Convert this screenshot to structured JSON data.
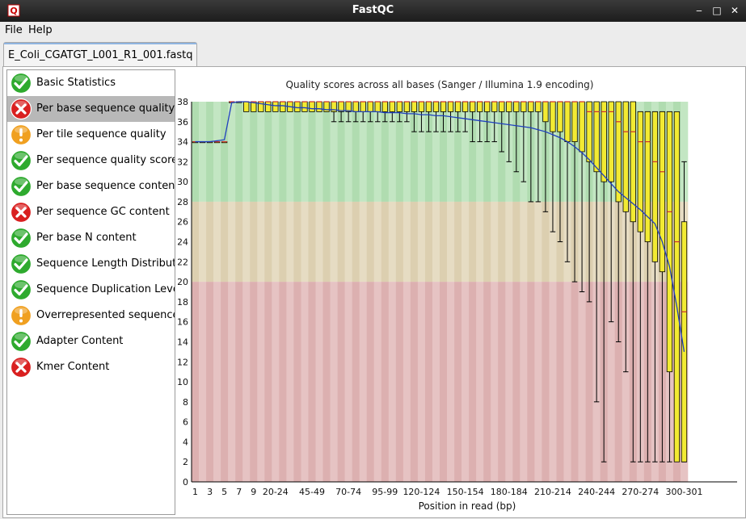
{
  "window": {
    "title": "FastQC"
  },
  "menubar": {
    "file_label": "File",
    "help_label": "Help"
  },
  "tab": {
    "label": "E_Coli_CGATGT_L001_R1_001.fastq"
  },
  "sidebar": {
    "items": [
      {
        "label": "Basic Statistics",
        "status": "pass"
      },
      {
        "label": "Per base sequence quality",
        "status": "fail",
        "selected": true
      },
      {
        "label": "Per tile sequence quality",
        "status": "warn"
      },
      {
        "label": "Per sequence quality scores",
        "status": "pass"
      },
      {
        "label": "Per base sequence content",
        "status": "pass"
      },
      {
        "label": "Per sequence GC content",
        "status": "fail"
      },
      {
        "label": "Per base N content",
        "status": "pass"
      },
      {
        "label": "Sequence Length Distribution",
        "status": "pass"
      },
      {
        "label": "Sequence Duplication Levels",
        "status": "pass"
      },
      {
        "label": "Overrepresented sequences",
        "status": "warn"
      },
      {
        "label": "Adapter Content",
        "status": "pass"
      },
      {
        "label": "Kmer Content",
        "status": "fail"
      }
    ]
  },
  "colors": {
    "pass": "#2eaa2e",
    "warn": "#f0a020",
    "fail": "#d92020",
    "band_good": "#c3e6c3",
    "band_warn": "#e6dcc3",
    "band_bad": "#e6c3c3",
    "box_fill": "#f2ea33",
    "mean_line": "#1f3fbf",
    "median_line": "#cc3030"
  },
  "chart_data": {
    "type": "box",
    "title": "Quality scores across all bases (Sanger / Illumina 1.9 encoding)",
    "xlabel": "Position in read (bp)",
    "ylabel": "",
    "ylim": [
      0,
      38
    ],
    "y_ticks": [
      0,
      2,
      4,
      6,
      8,
      10,
      12,
      14,
      16,
      18,
      20,
      22,
      24,
      26,
      28,
      30,
      32,
      34,
      36,
      38
    ],
    "bands": [
      {
        "from": 28,
        "to": 38,
        "name": "good"
      },
      {
        "from": 20,
        "to": 28,
        "name": "warn"
      },
      {
        "from": 0,
        "to": 20,
        "name": "bad"
      }
    ],
    "categories": [
      "1",
      "2",
      "3",
      "4",
      "5",
      "6",
      "7",
      "8",
      "9",
      "10-14",
      "15-19",
      "20-24",
      "25-29",
      "30-34",
      "35-39",
      "40-44",
      "45-49",
      "50-54",
      "55-59",
      "60-64",
      "65-69",
      "70-74",
      "75-79",
      "80-84",
      "85-89",
      "90-94",
      "95-99",
      "100-104",
      "105-109",
      "110-114",
      "115-119",
      "120-124",
      "125-129",
      "130-134",
      "135-139",
      "140-144",
      "145-149",
      "150-154",
      "155-159",
      "160-164",
      "165-169",
      "170-174",
      "175-179",
      "180-184",
      "185-189",
      "190-194",
      "195-199",
      "200-204",
      "205-209",
      "210-214",
      "215-219",
      "220-224",
      "225-229",
      "230-234",
      "235-239",
      "240-244",
      "245-249",
      "250-254",
      "255-259",
      "260-264",
      "265-269",
      "270-274",
      "275-279",
      "280-284",
      "285-289",
      "290-294",
      "295-299",
      "300-301"
    ],
    "x_tick_labels": [
      "1",
      "3",
      "5",
      "7",
      "9",
      "20-24",
      "45-49",
      "70-74",
      "95-99",
      "120-124",
      "150-154",
      "180-184",
      "210-214",
      "240-244",
      "270-274",
      "300-301"
    ],
    "series": [
      {
        "name": "mean",
        "values": [
          34.0,
          34.0,
          34.0,
          34.1,
          34.2,
          37.9,
          38.0,
          38.0,
          37.9,
          37.8,
          37.7,
          37.6,
          37.6,
          37.5,
          37.4,
          37.4,
          37.3,
          37.3,
          37.2,
          37.2,
          37.1,
          37.1,
          37.0,
          37.0,
          37.0,
          37.0,
          36.9,
          36.9,
          36.9,
          36.8,
          36.8,
          36.7,
          36.7,
          36.6,
          36.6,
          36.5,
          36.4,
          36.3,
          36.2,
          36.1,
          36.0,
          35.9,
          35.8,
          35.7,
          35.6,
          35.5,
          35.4,
          35.2,
          35.0,
          34.7,
          34.4,
          34.0,
          33.5,
          32.9,
          32.2,
          31.4,
          30.6,
          29.8,
          29.0,
          28.4,
          27.8,
          27.2,
          26.5,
          25.8,
          24.0,
          21.5,
          17.5,
          13.0
        ]
      },
      {
        "name": "median",
        "values": [
          34,
          34,
          34,
          34,
          34,
          38,
          38,
          38,
          38,
          38,
          38,
          38,
          38,
          38,
          38,
          38,
          38,
          38,
          38,
          38,
          38,
          38,
          38,
          38,
          38,
          38,
          38,
          38,
          38,
          38,
          38,
          38,
          38,
          38,
          38,
          38,
          38,
          38,
          38,
          38,
          38,
          38,
          38,
          38,
          38,
          38,
          38,
          38,
          38,
          38,
          38,
          38,
          38,
          38,
          37,
          37,
          37,
          37,
          36,
          35,
          35,
          34,
          34,
          32,
          31,
          27,
          24,
          17
        ]
      },
      {
        "name": "q1",
        "values": [
          34,
          34,
          34,
          34,
          34,
          38,
          38,
          37,
          37,
          37,
          37,
          37,
          37,
          37,
          37,
          37,
          37,
          37,
          37,
          37,
          37,
          37,
          37,
          37,
          37,
          37,
          37,
          37,
          37,
          37,
          37,
          37,
          37,
          37,
          37,
          37,
          37,
          37,
          37,
          37,
          37,
          37,
          37,
          37,
          37,
          37,
          37,
          37,
          36,
          35,
          35,
          34,
          34,
          33,
          32,
          31,
          30,
          30,
          28,
          27,
          26,
          25,
          24,
          22,
          21,
          11,
          2,
          2
        ]
      },
      {
        "name": "q3",
        "values": [
          34,
          34,
          34,
          34,
          34,
          38,
          38,
          38,
          38,
          38,
          38,
          38,
          38,
          38,
          38,
          38,
          38,
          38,
          38,
          38,
          38,
          38,
          38,
          38,
          38,
          38,
          38,
          38,
          38,
          38,
          38,
          38,
          38,
          38,
          38,
          38,
          38,
          38,
          38,
          38,
          38,
          38,
          38,
          38,
          38,
          38,
          38,
          38,
          38,
          38,
          38,
          38,
          38,
          38,
          38,
          38,
          38,
          38,
          38,
          38,
          38,
          37,
          37,
          37,
          37,
          37,
          37,
          26
        ]
      },
      {
        "name": "p10",
        "values": [
          34,
          34,
          34,
          34,
          34,
          38,
          38,
          37,
          37,
          37,
          37,
          37,
          37,
          37,
          37,
          37,
          37,
          37,
          37,
          36,
          36,
          36,
          36,
          36,
          36,
          36,
          36,
          36,
          36,
          36,
          35,
          35,
          35,
          35,
          35,
          35,
          35,
          35,
          34,
          34,
          34,
          34,
          33,
          32,
          31,
          30,
          28,
          28,
          27,
          25,
          24,
          22,
          20,
          19,
          18,
          8,
          2,
          16,
          14,
          11,
          2,
          2,
          2,
          2,
          2,
          2,
          2,
          2
        ]
      },
      {
        "name": "p90",
        "values": [
          34,
          34,
          34,
          34,
          34,
          38,
          38,
          38,
          38,
          38,
          38,
          38,
          38,
          38,
          38,
          38,
          38,
          38,
          38,
          38,
          38,
          38,
          38,
          38,
          38,
          38,
          38,
          38,
          38,
          38,
          38,
          38,
          38,
          38,
          38,
          38,
          38,
          38,
          38,
          38,
          38,
          38,
          38,
          38,
          38,
          38,
          38,
          38,
          38,
          38,
          38,
          38,
          38,
          38,
          37,
          37,
          37,
          37,
          37,
          37,
          37,
          37,
          37,
          37,
          37,
          37,
          37,
          32
        ]
      }
    ],
    "grid": false,
    "legend": "none"
  }
}
